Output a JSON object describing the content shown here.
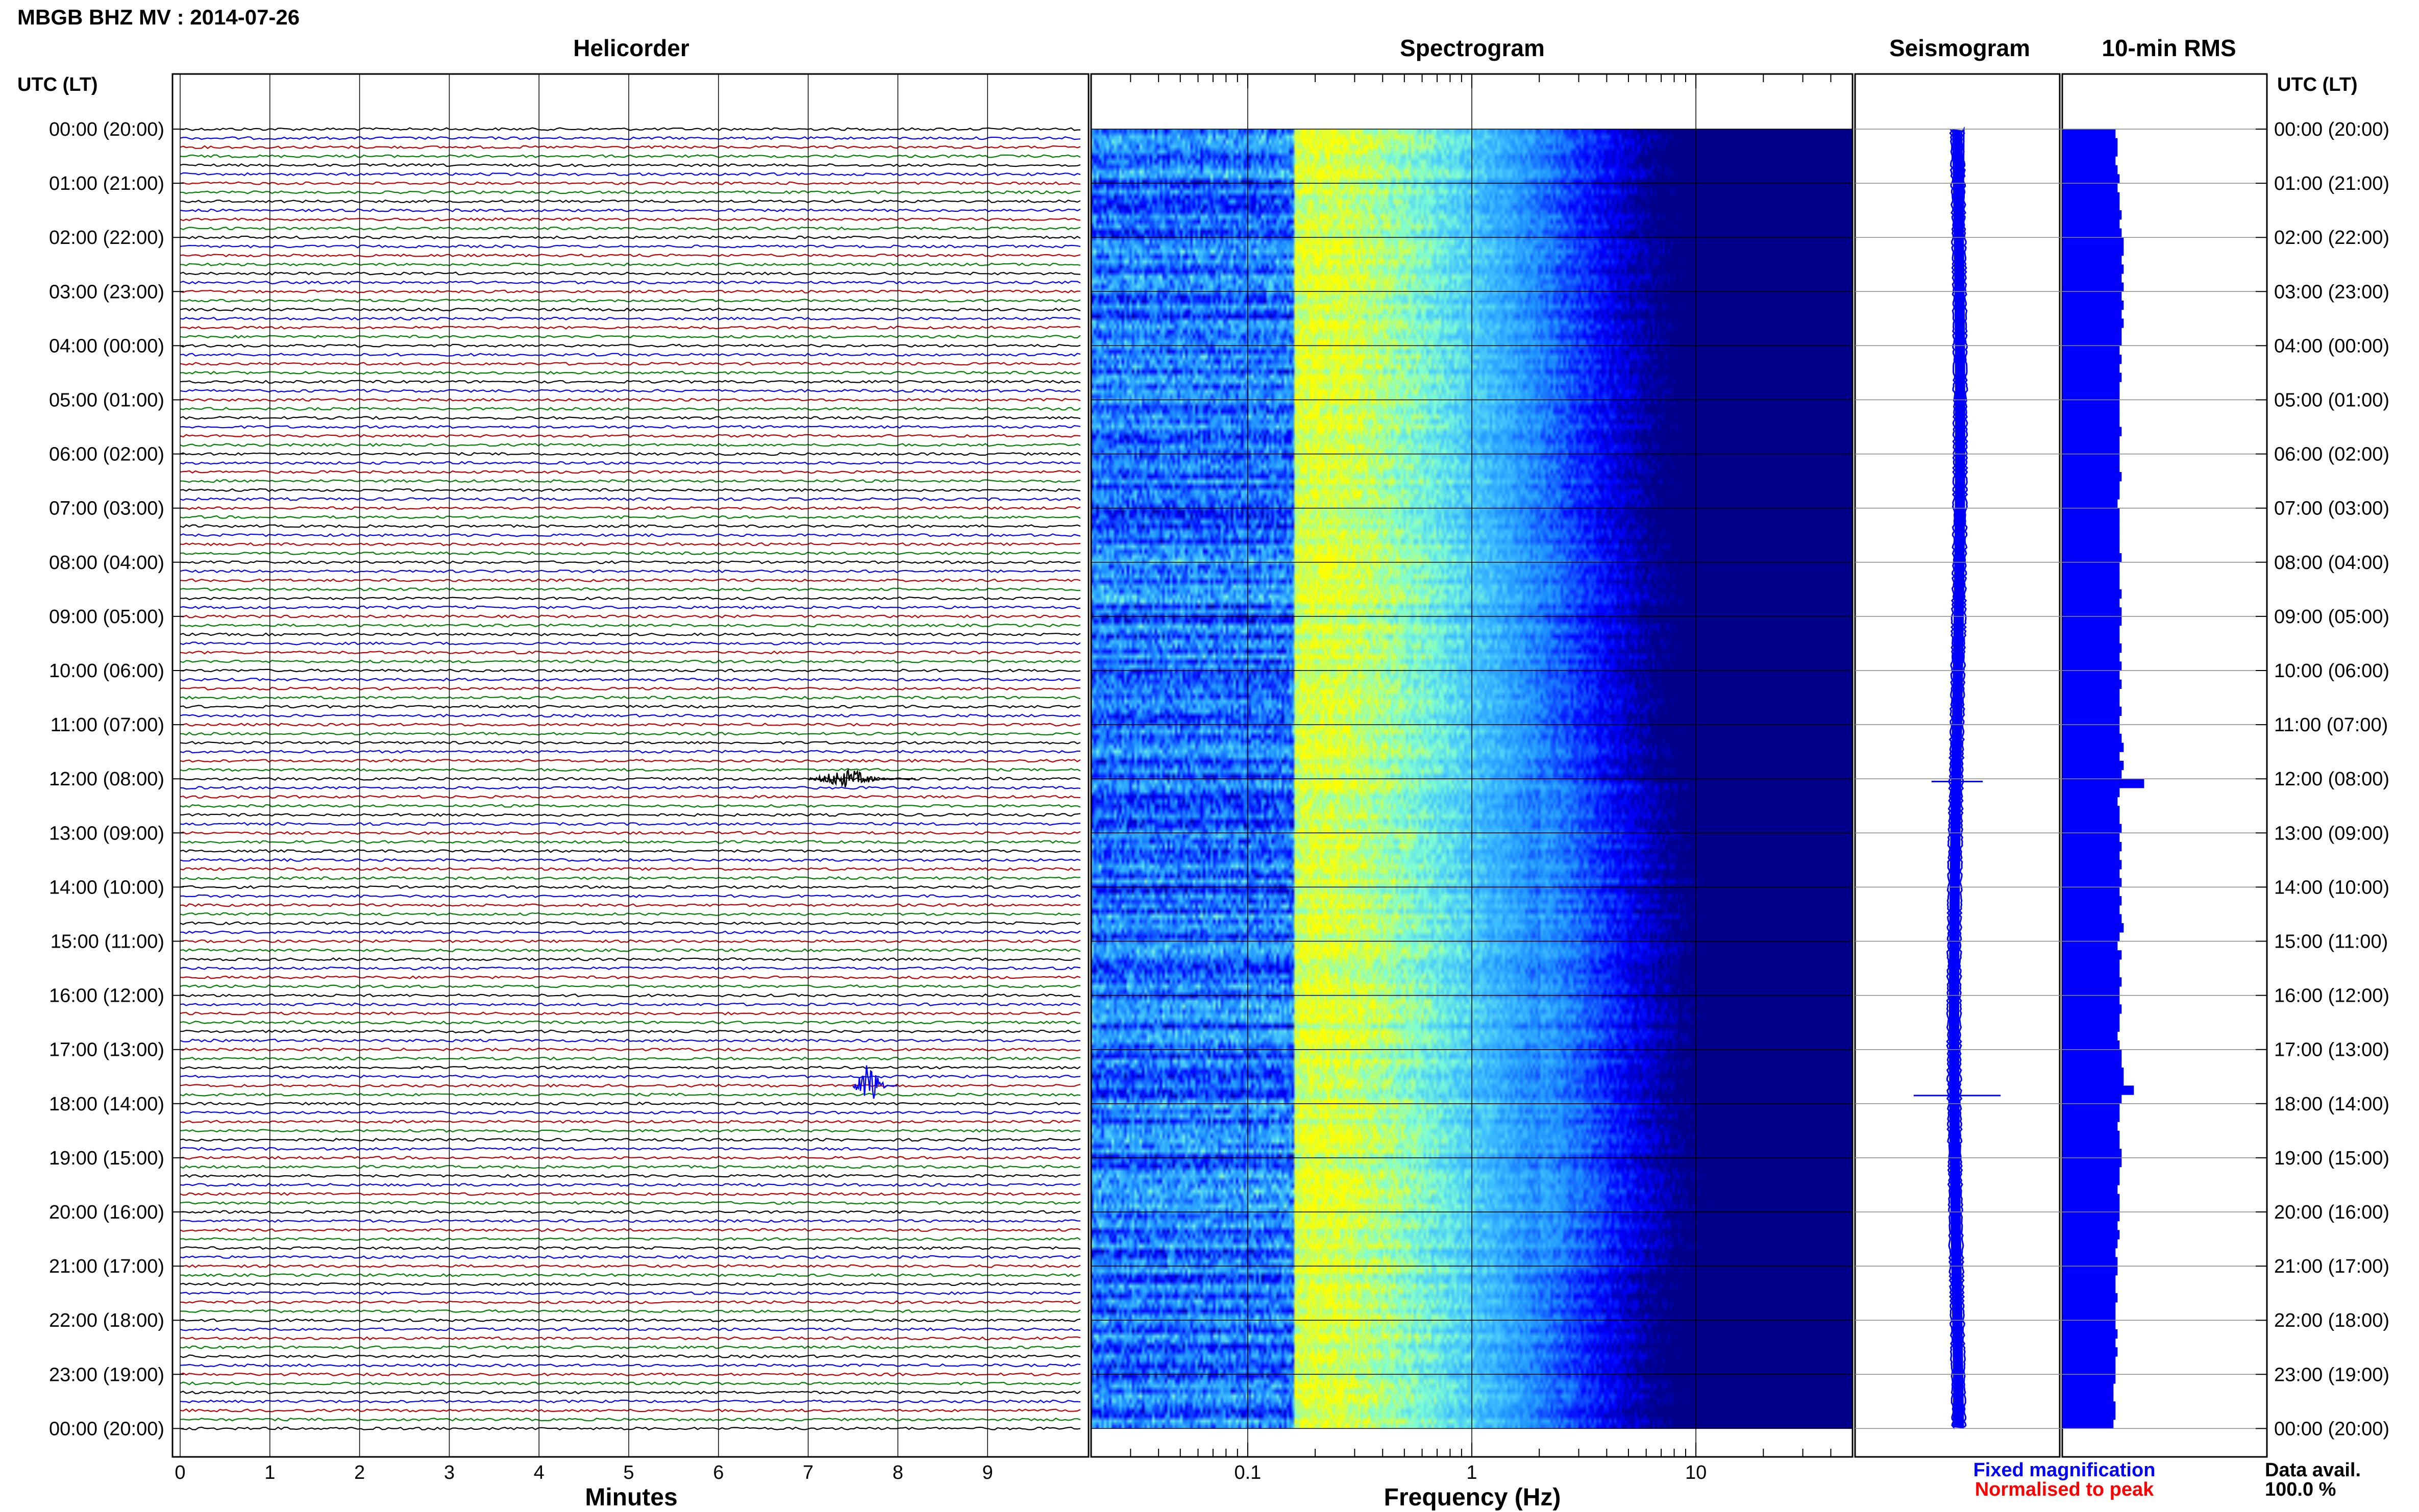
{
  "header": {
    "title": "MBGB BHZ MV : 2014-07-26",
    "panel_titles": {
      "helicorder": "Helicorder",
      "spectrogram": "Spectrogram",
      "seismogram": "Seismogram",
      "rms": "10-min RMS"
    },
    "time_axis_label_left": "UTC (LT)",
    "time_axis_label_right": "UTC (LT)"
  },
  "footer": {
    "x_label_minutes": "Minutes",
    "x_label_frequency": "Frequency (Hz)",
    "legend_fixed": "Fixed magnification",
    "legend_normalised": "Normalised to peak",
    "data_avail_label": "Data avail.",
    "data_avail_value": "100.0 %"
  },
  "colors": {
    "trace_cycle": [
      "#000000",
      "#0000ff",
      "#c00000",
      "#008000"
    ],
    "seismogram": "#0000ff",
    "rms": "#0000ff",
    "legend_fixed": "#0000ff",
    "legend_normalised": "#ff0000",
    "spectrogram_scale": [
      "#00008b",
      "#0000ff",
      "#1e90ff",
      "#40c0ff",
      "#7fffd4",
      "#ffff00"
    ]
  },
  "chart_data": {
    "type": "heatmap",
    "time_ticks": [
      "00:00 (20:00)",
      "01:00 (21:00)",
      "02:00 (22:00)",
      "03:00 (23:00)",
      "04:00 (00:00)",
      "05:00 (01:00)",
      "06:00 (02:00)",
      "07:00 (03:00)",
      "08:00 (04:00)",
      "09:00 (05:00)",
      "10:00 (06:00)",
      "11:00 (07:00)",
      "12:00 (08:00)",
      "13:00 (09:00)",
      "14:00 (10:00)",
      "15:00 (11:00)",
      "16:00 (12:00)",
      "17:00 (13:00)",
      "18:00 (14:00)",
      "19:00 (15:00)",
      "20:00 (16:00)",
      "21:00 (17:00)",
      "22:00 (18:00)",
      "23:00 (19:00)",
      "00:00 (20:00)"
    ],
    "helicorder": {
      "xlabel": "Minutes",
      "xlim": [
        0,
        10
      ],
      "x_ticks": [
        "0",
        "1",
        "2",
        "3",
        "4",
        "5",
        "6",
        "7",
        "8",
        "9"
      ],
      "lines_per_hour": 6,
      "events": [
        {
          "hour": 12.0,
          "minute_start": 7.0,
          "minute_end": 8.2,
          "color": "#000000"
        },
        {
          "hour": 17.67,
          "minute_start": 7.5,
          "minute_end": 8.0,
          "color": "#0000ff"
        }
      ]
    },
    "spectrogram": {
      "xlabel": "Frequency (Hz)",
      "x_scale": "log",
      "xlim": [
        0.02,
        50
      ],
      "x_ticks": [
        "0.1",
        "1",
        "10"
      ]
    },
    "seismogram": {
      "events": [
        {
          "hour": 12.05,
          "amplitude": 0.5
        },
        {
          "hour": 17.85,
          "amplitude": 0.85
        }
      ]
    },
    "rms": {
      "values": [
        0.26,
        0.27,
        0.27,
        0.26,
        0.27,
        0.28,
        0.27,
        0.28,
        0.28,
        0.29,
        0.28,
        0.29,
        0.3,
        0.3,
        0.29,
        0.3,
        0.29,
        0.3,
        0.29,
        0.3,
        0.29,
        0.3,
        0.29,
        0.29,
        0.28,
        0.29,
        0.28,
        0.29,
        0.28,
        0.28,
        0.28,
        0.28,
        0.28,
        0.29,
        0.28,
        0.28,
        0.28,
        0.28,
        0.29,
        0.28,
        0.28,
        0.27,
        0.28,
        0.28,
        0.28,
        0.28,
        0.28,
        0.29,
        0.28,
        0.28,
        0.28,
        0.29,
        0.28,
        0.29,
        0.29,
        0.28,
        0.28,
        0.29,
        0.28,
        0.29,
        0.28,
        0.29,
        0.28,
        0.28,
        0.29,
        0.28,
        0.28,
        0.29,
        0.3,
        0.28,
        0.3,
        0.29,
        0.4,
        0.28,
        0.27,
        0.28,
        0.28,
        0.29,
        0.28,
        0.29,
        0.28,
        0.29,
        0.28,
        0.29,
        0.28,
        0.29,
        0.28,
        0.29,
        0.3,
        0.28,
        0.27,
        0.29,
        0.28,
        0.28,
        0.29,
        0.28,
        0.28,
        0.29,
        0.28,
        0.28,
        0.27,
        0.28,
        0.29,
        0.29,
        0.3,
        0.3,
        0.35,
        0.29,
        0.28,
        0.28,
        0.27,
        0.28,
        0.28,
        0.29,
        0.29,
        0.28,
        0.28,
        0.27,
        0.28,
        0.28,
        0.28,
        0.27,
        0.28,
        0.27,
        0.26,
        0.27,
        0.27,
        0.26,
        0.26,
        0.27,
        0.26,
        0.26,
        0.26,
        0.27,
        0.26,
        0.27,
        0.26,
        0.26,
        0.26,
        0.25,
        0.25,
        0.26,
        0.26,
        0.25
      ]
    }
  }
}
